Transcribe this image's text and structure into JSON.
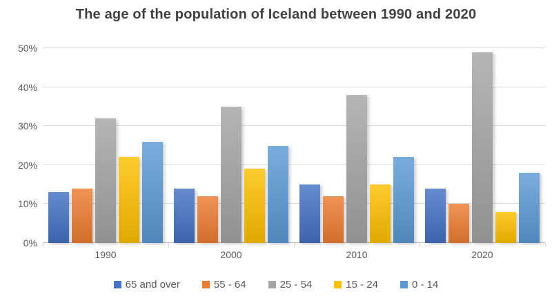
{
  "chart_data": {
    "type": "bar",
    "title": "The age of the population of Iceland between 1990 and 2020",
    "categories": [
      "1990",
      "2000",
      "2010",
      "2020"
    ],
    "series": [
      {
        "name": "65 and over",
        "color": "#4472C4",
        "values": [
          13,
          14,
          15,
          14
        ]
      },
      {
        "name": "55 - 64",
        "color": "#ED7D31",
        "values": [
          14,
          12,
          12,
          10
        ]
      },
      {
        "name": "25 - 54",
        "color": "#A5A5A5",
        "values": [
          32,
          35,
          38,
          49
        ]
      },
      {
        "name": "15 - 24",
        "color": "#FFC000",
        "values": [
          22,
          19,
          15,
          8
        ]
      },
      {
        "name": "0 - 14",
        "color": "#5B9BD5",
        "values": [
          26,
          25,
          22,
          18
        ]
      }
    ],
    "xlabel": "",
    "ylabel": "",
    "ylim": [
      0,
      50
    ],
    "ytick_step": 10,
    "ytick_labels": [
      "0%",
      "10%",
      "20%",
      "30%",
      "40%",
      "50%"
    ],
    "grid": true,
    "legend_position": "bottom",
    "text_color": "#595959",
    "title_color": "#404040",
    "gridline_color": "#d9d9d9"
  }
}
